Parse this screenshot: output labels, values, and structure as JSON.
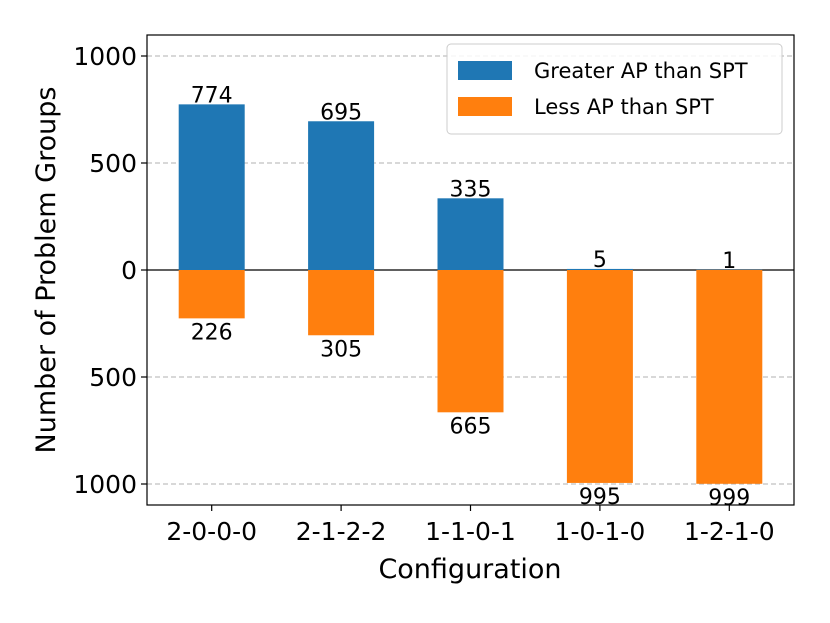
{
  "chart_data": {
    "type": "bar",
    "title": "",
    "xlabel": "Configuration",
    "ylabel": "Number of Problem Groups",
    "categories": [
      "2-0-0-0",
      "2-1-2-2",
      "1-1-0-1",
      "1-0-1-0",
      "1-2-1-0"
    ],
    "series": [
      {
        "name": "Greater AP than SPT",
        "color": "#1f77b4",
        "direction": "up",
        "values": [
          774,
          695,
          335,
          5,
          1
        ]
      },
      {
        "name": "Less AP than SPT",
        "color": "#ff7f0e",
        "direction": "down",
        "values": [
          226,
          305,
          665,
          995,
          999
        ]
      }
    ],
    "ylim": [
      -1000,
      1000
    ],
    "yticks": [
      1000,
      500,
      0,
      -500,
      -1000
    ],
    "ytick_labels": [
      "1000",
      "500",
      "0",
      "500",
      "1000"
    ],
    "grid": true,
    "legend_position": "top-right"
  }
}
